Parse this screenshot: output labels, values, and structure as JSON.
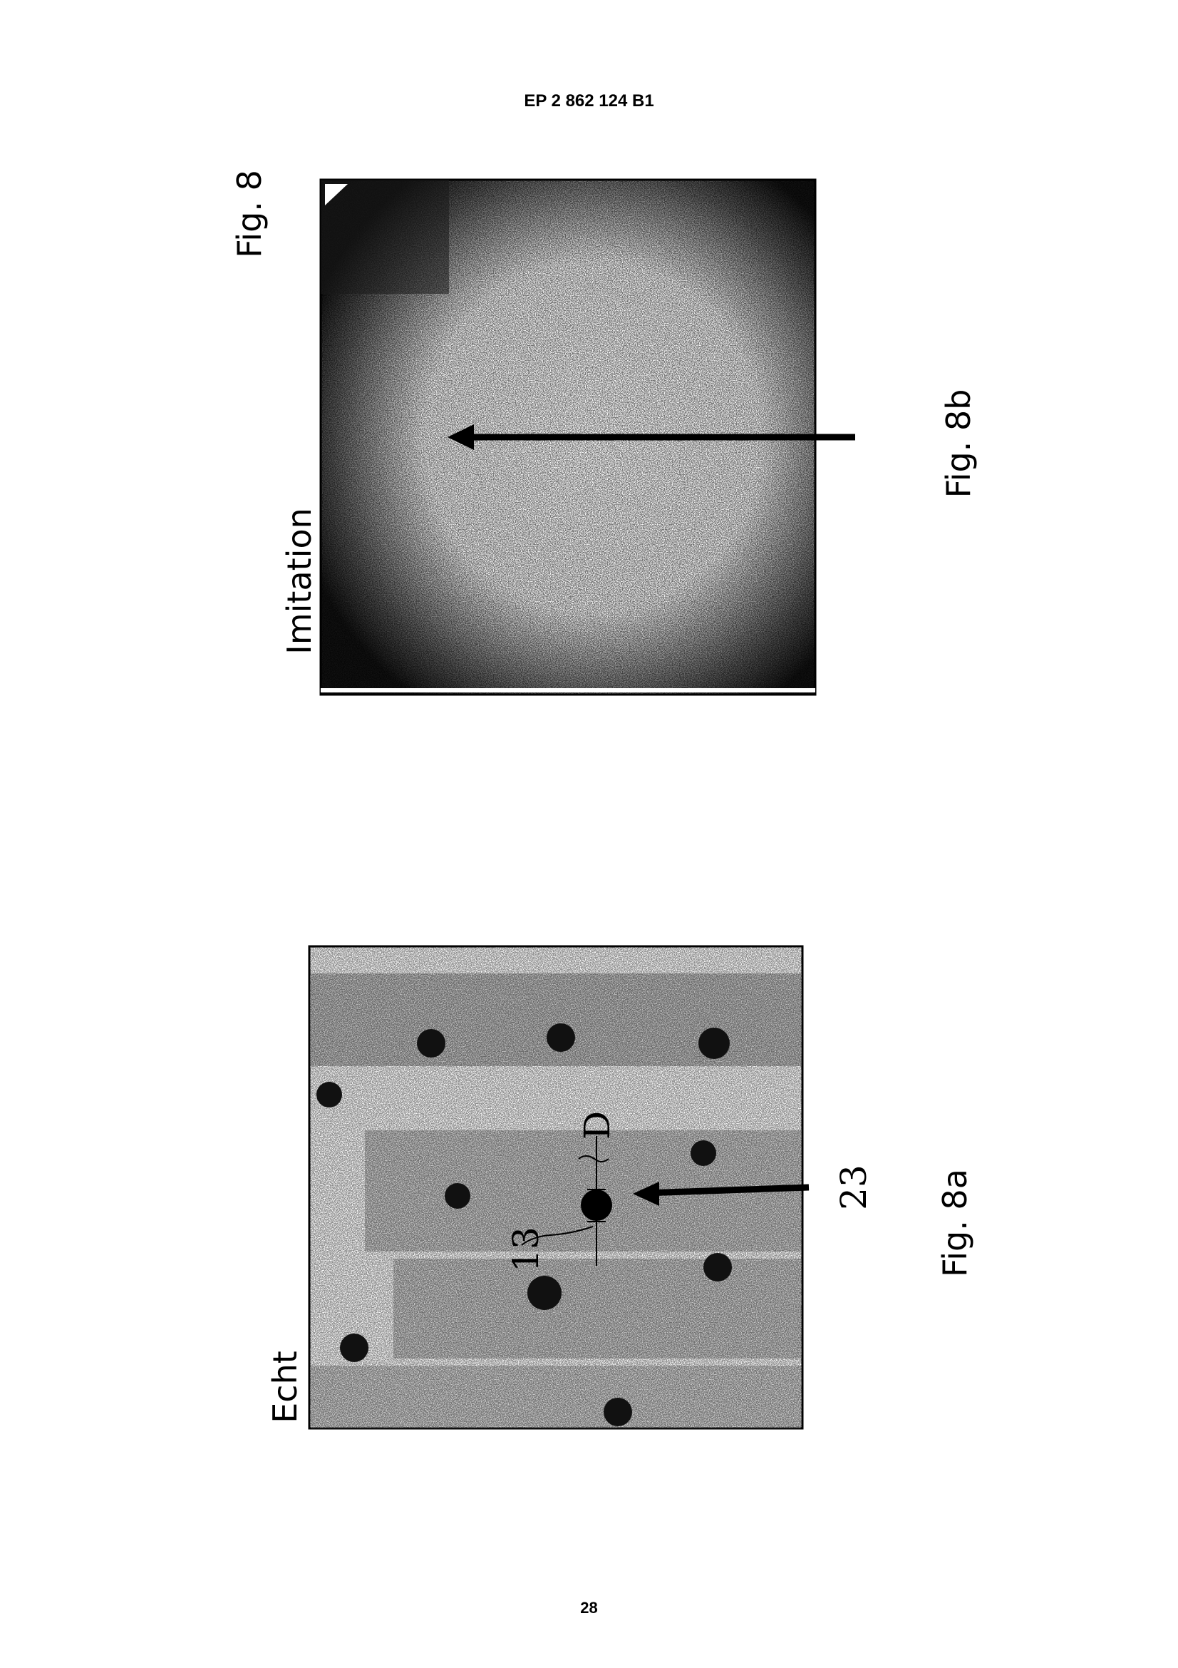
{
  "header": "EP 2 862 124 B1",
  "page_number": "28",
  "figure_title": "Fig. 8",
  "figure_8b": {
    "caption": "Fig. 8b",
    "label": "Imitation"
  },
  "figure_8a": {
    "caption": "Fig. 8a",
    "label": "Echt",
    "ref_23": "23",
    "ref_13": "13",
    "ref_D": "D"
  }
}
